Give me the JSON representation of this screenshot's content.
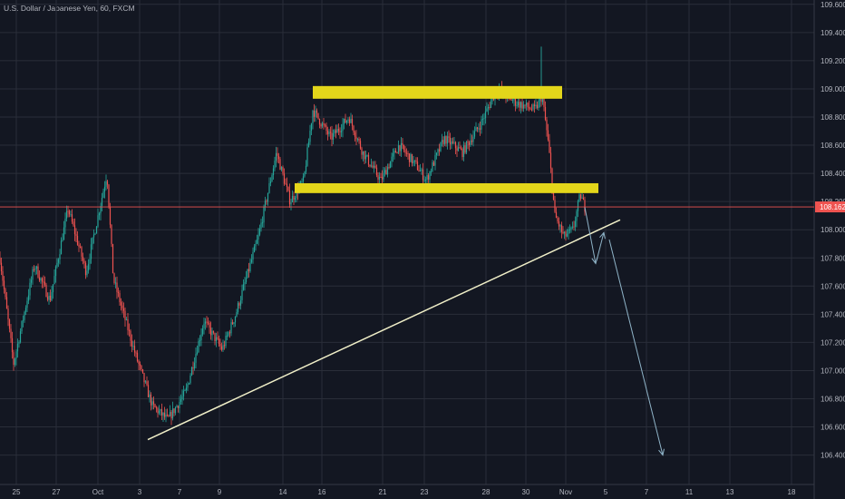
{
  "symbol_title": "U.S. Dollar / Japanese Yen, 60, FXCM",
  "colors": {
    "background": "#131722",
    "grid": "#2a2e39",
    "up": "#26a69a",
    "down": "#ef5350",
    "price_line": "#ef5350",
    "price_badge": "#ef5350",
    "zone": "#e3d61a",
    "trendline": "#f0efc8",
    "arrow": "#8fb4c8",
    "axis_text": "#b2b5be"
  },
  "chart_data": {
    "type": "candlestick",
    "title": "U.S. Dollar / Japanese Yen, 60, FXCM",
    "y_axis": {
      "side": "right",
      "ticks": [
        "109.600",
        "109.400",
        "109.200",
        "109.000",
        "108.800",
        "108.600",
        "108.400",
        "108.200",
        "108.000",
        "107.800",
        "107.600",
        "107.400",
        "107.200",
        "107.000",
        "106.800",
        "106.600",
        "106.400"
      ],
      "range": [
        106.26,
        109.66
      ]
    },
    "x_axis": {
      "ticks": [
        "25",
        "27",
        "Oct",
        "3",
        "7",
        "9",
        "14",
        "16",
        "21",
        "23",
        "28",
        "30",
        "Nov",
        "5",
        "7",
        "11",
        "13",
        "18"
      ]
    },
    "last_price": 108.162,
    "last_price_label": "108.162",
    "price_path": [
      {
        "t": 0,
        "p": 107.8
      },
      {
        "t": 15,
        "p": 107.05
      },
      {
        "t": 38,
        "p": 107.75
      },
      {
        "t": 55,
        "p": 107.5
      },
      {
        "t": 75,
        "p": 108.15
      },
      {
        "t": 95,
        "p": 107.7
      },
      {
        "t": 118,
        "p": 108.4
      },
      {
        "t": 125,
        "p": 107.65
      },
      {
        "t": 150,
        "p": 107.1
      },
      {
        "t": 168,
        "p": 106.75
      },
      {
        "t": 185,
        "p": 106.65
      },
      {
        "t": 205,
        "p": 106.85
      },
      {
        "t": 225,
        "p": 107.35
      },
      {
        "t": 245,
        "p": 107.15
      },
      {
        "t": 260,
        "p": 107.4
      },
      {
        "t": 285,
        "p": 107.95
      },
      {
        "t": 305,
        "p": 108.55
      },
      {
        "t": 320,
        "p": 108.2
      },
      {
        "t": 335,
        "p": 108.35
      },
      {
        "t": 345,
        "p": 108.85
      },
      {
        "t": 365,
        "p": 108.65
      },
      {
        "t": 385,
        "p": 108.8
      },
      {
        "t": 400,
        "p": 108.55
      },
      {
        "t": 420,
        "p": 108.35
      },
      {
        "t": 440,
        "p": 108.6
      },
      {
        "t": 460,
        "p": 108.45
      },
      {
        "t": 470,
        "p": 108.35
      },
      {
        "t": 490,
        "p": 108.65
      },
      {
        "t": 510,
        "p": 108.55
      },
      {
        "t": 530,
        "p": 108.75
      },
      {
        "t": 548,
        "p": 109.0
      },
      {
        "t": 570,
        "p": 108.9
      },
      {
        "t": 590,
        "p": 108.85
      },
      {
        "t": 598,
        "p": 108.95
      },
      {
        "t": 605,
        "p": 108.6
      },
      {
        "t": 612,
        "p": 108.1
      },
      {
        "t": 622,
        "p": 107.95
      },
      {
        "t": 632,
        "p": 108.0
      },
      {
        "t": 640,
        "p": 108.25
      },
      {
        "t": 645,
        "p": 108.162
      }
    ],
    "spikes": [
      {
        "t": 597,
        "high": 109.3
      }
    ],
    "annotations": {
      "resistance_zone": {
        "t_start": 345,
        "t_end": 620,
        "price_low": 108.93,
        "price_high": 109.02
      },
      "support_zone": {
        "t_start": 325,
        "t_end": 660,
        "price_low": 108.26,
        "price_high": 108.33
      },
      "trendline": {
        "t_start": 163,
        "p_start": 106.51,
        "t_end": 684,
        "p_end": 108.07
      },
      "projection_arrows": [
        {
          "points": [
            {
              "t": 645,
              "p": 108.16
            },
            {
              "t": 657,
              "p": 107.76
            }
          ]
        },
        {
          "points": [
            {
              "t": 658,
              "p": 107.78
            },
            {
              "t": 666,
              "p": 107.98
            }
          ]
        },
        {
          "points": [
            {
              "t": 672,
              "p": 107.93
            },
            {
              "t": 731,
              "p": 106.4
            }
          ]
        }
      ]
    }
  }
}
